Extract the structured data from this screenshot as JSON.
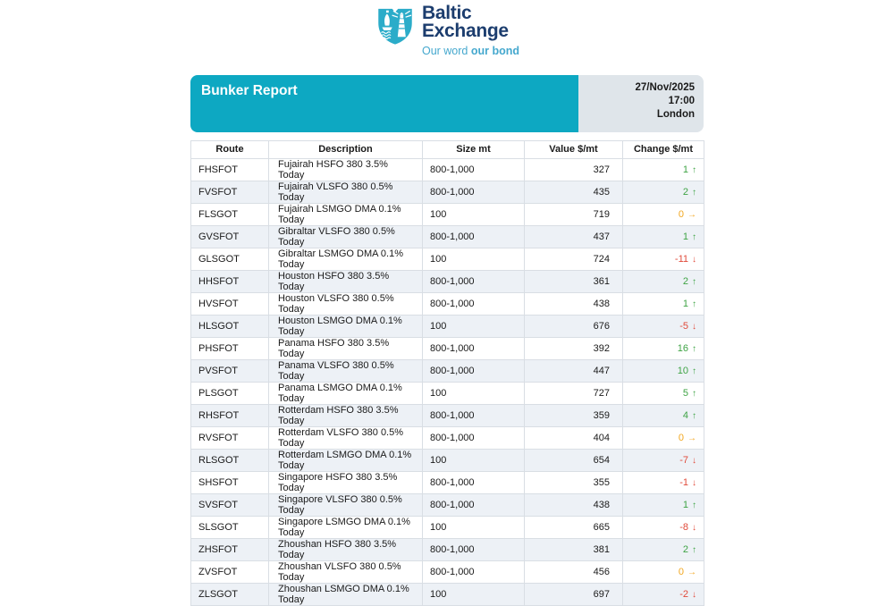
{
  "logo": {
    "name_line1": "Baltic",
    "name_line2": "Exchange",
    "tagline_regular": "Our word ",
    "tagline_bold": "our bond"
  },
  "report": {
    "title": "Bunker Report",
    "date": "27/Nov/2025",
    "time": "17:00",
    "location": "London"
  },
  "colors": {
    "header_teal": "#0da8c2",
    "logo_teal": "#2bacc9",
    "logo_navy": "#1c3d6e",
    "tagline_teal": "#45a8ce",
    "date_box_gray": "#dfe5ea",
    "row_stripe": "#edf1f6",
    "table_border": "#d9dee4",
    "change_up_green": "#3ea344",
    "change_down_red": "#e04a3a",
    "change_flat_orange": "#f2a71f"
  },
  "icons": {
    "up": "↑",
    "down": "↓",
    "flat": "→"
  },
  "table": {
    "columns": [
      "Route",
      "Description",
      "Size mt",
      "Value $/mt",
      "Change $/mt"
    ],
    "rows": [
      {
        "route": "FHSFOT",
        "description": "Fujairah HSFO 380 3.5% Today",
        "size": "800-1,000",
        "value": "327",
        "change": "1",
        "direction": "up"
      },
      {
        "route": "FVSFOT",
        "description": "Fujairah VLSFO 380 0.5% Today",
        "size": "800-1,000",
        "value": "435",
        "change": "2",
        "direction": "up"
      },
      {
        "route": "FLSGOT",
        "description": "Fujairah LSMGO DMA 0.1% Today",
        "size": "100",
        "value": "719",
        "change": "0",
        "direction": "flat"
      },
      {
        "route": "GVSFOT",
        "description": "Gibraltar VLSFO 380 0.5% Today",
        "size": "800-1,000",
        "value": "437",
        "change": "1",
        "direction": "up"
      },
      {
        "route": "GLSGOT",
        "description": "Gibraltar LSMGO DMA 0.1% Today",
        "size": "100",
        "value": "724",
        "change": "-11",
        "direction": "down"
      },
      {
        "route": "HHSFOT",
        "description": "Houston HSFO 380 3.5% Today",
        "size": "800-1,000",
        "value": "361",
        "change": "2",
        "direction": "up"
      },
      {
        "route": "HVSFOT",
        "description": "Houston VLSFO 380 0.5% Today",
        "size": "800-1,000",
        "value": "438",
        "change": "1",
        "direction": "up"
      },
      {
        "route": "HLSGOT",
        "description": "Houston LSMGO DMA 0.1% Today",
        "size": "100",
        "value": "676",
        "change": "-5",
        "direction": "down"
      },
      {
        "route": "PHSFOT",
        "description": "Panama HSFO 380 3.5% Today",
        "size": "800-1,000",
        "value": "392",
        "change": "16",
        "direction": "up"
      },
      {
        "route": "PVSFOT",
        "description": "Panama VLSFO 380 0.5% Today",
        "size": "800-1,000",
        "value": "447",
        "change": "10",
        "direction": "up"
      },
      {
        "route": "PLSGOT",
        "description": "Panama LSMGO DMA 0.1% Today",
        "size": "100",
        "value": "727",
        "change": "5",
        "direction": "up"
      },
      {
        "route": "RHSFOT",
        "description": "Rotterdam HSFO 380 3.5% Today",
        "size": "800-1,000",
        "value": "359",
        "change": "4",
        "direction": "up"
      },
      {
        "route": "RVSFOT",
        "description": "Rotterdam VLSFO 380 0.5% Today",
        "size": "800-1,000",
        "value": "404",
        "change": "0",
        "direction": "flat"
      },
      {
        "route": "RLSGOT",
        "description": "Rotterdam LSMGO DMA 0.1% Today",
        "size": "100",
        "value": "654",
        "change": "-7",
        "direction": "down"
      },
      {
        "route": "SHSFOT",
        "description": "Singapore HSFO 380 3.5% Today",
        "size": "800-1,000",
        "value": "355",
        "change": "-1",
        "direction": "down"
      },
      {
        "route": "SVSFOT",
        "description": "Singapore VLSFO 380 0.5% Today",
        "size": "800-1,000",
        "value": "438",
        "change": "1",
        "direction": "up"
      },
      {
        "route": "SLSGOT",
        "description": "Singapore LSMGO DMA 0.1% Today",
        "size": "100",
        "value": "665",
        "change": "-8",
        "direction": "down"
      },
      {
        "route": "ZHSFOT",
        "description": "Zhoushan HSFO 380 3.5% Today",
        "size": "800-1,000",
        "value": "381",
        "change": "2",
        "direction": "up"
      },
      {
        "route": "ZVSFOT",
        "description": "Zhoushan VLSFO 380 0.5% Today",
        "size": "800-1,000",
        "value": "456",
        "change": "0",
        "direction": "flat"
      },
      {
        "route": "ZLSGOT",
        "description": "Zhoushan LSMGO DMA 0.1% Today",
        "size": "100",
        "value": "697",
        "change": "-2",
        "direction": "down"
      }
    ]
  }
}
